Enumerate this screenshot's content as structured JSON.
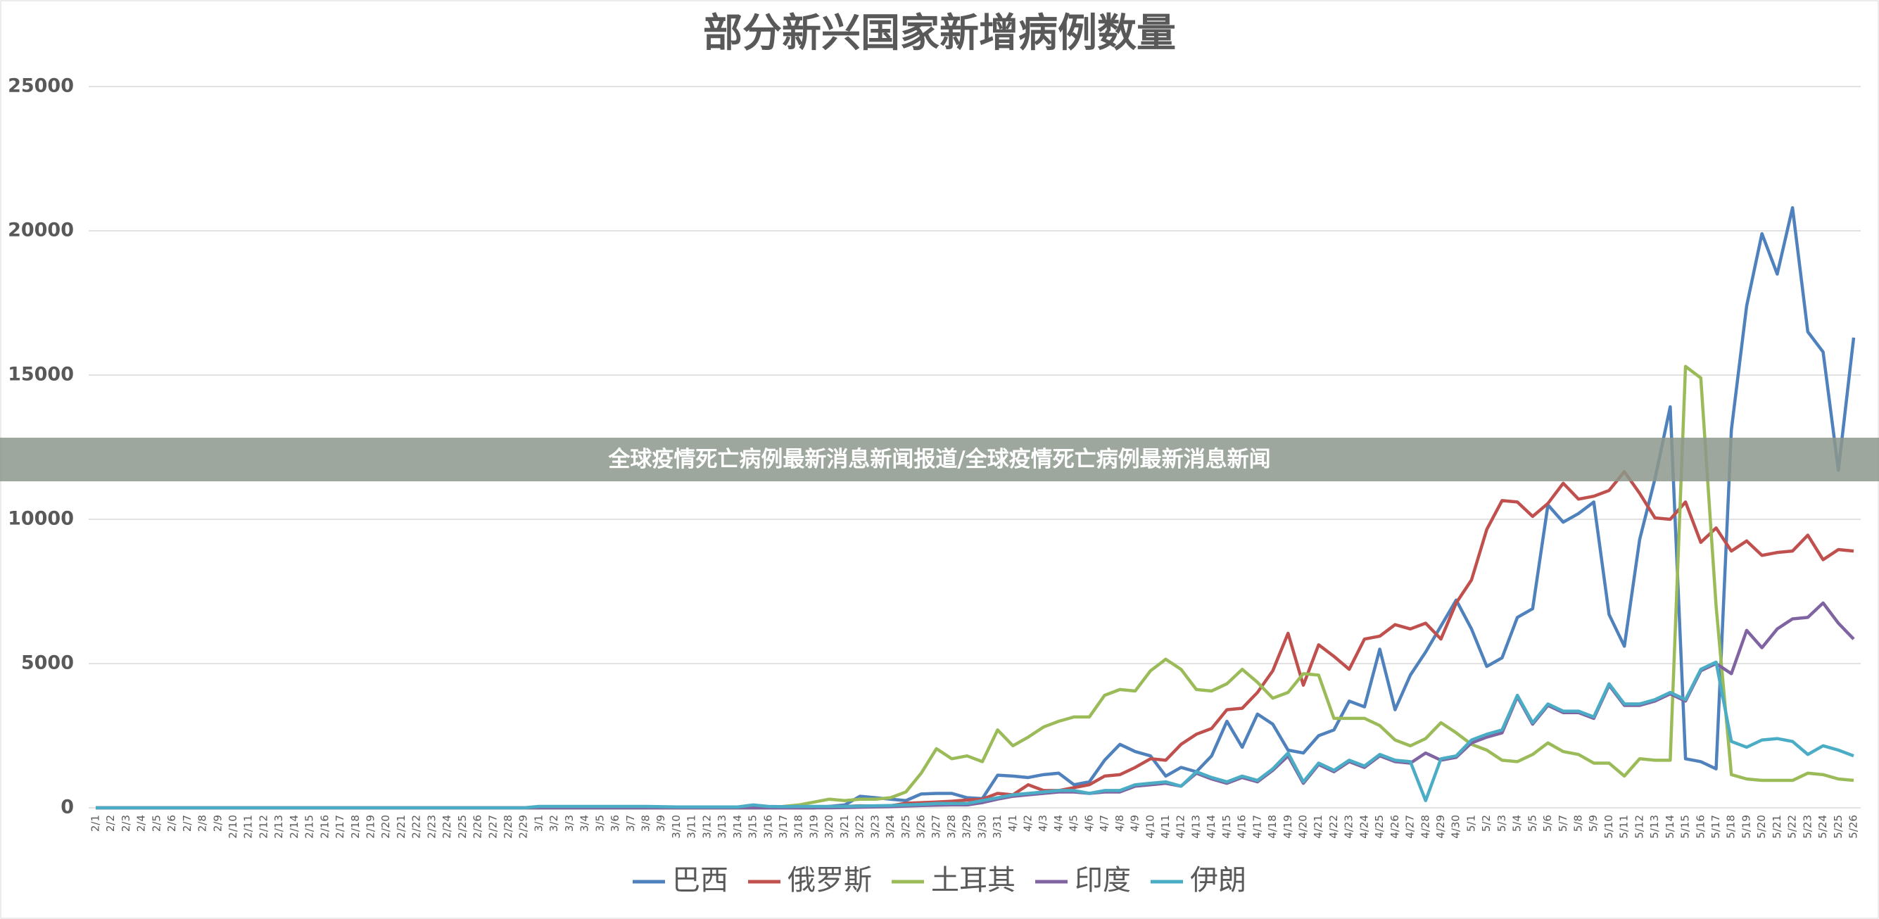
{
  "chart_data": {
    "type": "line",
    "title": "部分新兴国家新增病例数量",
    "categories": [
      "2/1",
      "2/2",
      "2/3",
      "2/4",
      "2/5",
      "2/6",
      "2/7",
      "2/8",
      "2/9",
      "2/10",
      "2/11",
      "2/12",
      "2/13",
      "2/14",
      "2/15",
      "2/16",
      "2/17",
      "2/18",
      "2/19",
      "2/20",
      "2/21",
      "2/22",
      "2/23",
      "2/24",
      "2/25",
      "2/26",
      "2/27",
      "2/28",
      "2/29",
      "3/1",
      "3/2",
      "3/3",
      "3/4",
      "3/5",
      "3/6",
      "3/7",
      "3/8",
      "3/9",
      "3/10",
      "3/11",
      "3/12",
      "3/13",
      "3/14",
      "3/15",
      "3/16",
      "3/17",
      "3/18",
      "3/19",
      "3/20",
      "3/21",
      "3/22",
      "3/23",
      "3/24",
      "3/25",
      "3/26",
      "3/27",
      "3/28",
      "3/29",
      "3/30",
      "3/31",
      "4/1",
      "4/2",
      "4/3",
      "4/4",
      "4/5",
      "4/6",
      "4/7",
      "4/8",
      "4/9",
      "4/10",
      "4/11",
      "4/12",
      "4/13",
      "4/14",
      "4/15",
      "4/16",
      "4/17",
      "4/18",
      "4/19",
      "4/20",
      "4/21",
      "4/22",
      "4/23",
      "4/24",
      "4/25",
      "4/26",
      "4/27",
      "4/28",
      "4/29",
      "4/30",
      "5/1",
      "5/2",
      "5/3",
      "5/4",
      "5/5",
      "5/6",
      "5/7",
      "5/8",
      "5/9",
      "5/10",
      "5/11",
      "5/12",
      "5/13",
      "5/14",
      "5/15",
      "5/16",
      "5/17",
      "5/18",
      "5/19",
      "5/20",
      "5/21",
      "5/22",
      "5/23",
      "5/24",
      "5/25",
      "5/26"
    ],
    "series": [
      {
        "name": "巴西",
        "color": "#4f81bd",
        "values": [
          0,
          0,
          0,
          0,
          0,
          0,
          0,
          0,
          0,
          0,
          0,
          0,
          0,
          0,
          0,
          0,
          0,
          0,
          0,
          0,
          0,
          0,
          0,
          0,
          0,
          0,
          0,
          0,
          0,
          0,
          0,
          0,
          0,
          0,
          0,
          0,
          0,
          0,
          0,
          0,
          0,
          0,
          0,
          0,
          0,
          0,
          0,
          0,
          50,
          100,
          400,
          350,
          300,
          250,
          480,
          500,
          500,
          350,
          320,
          1130,
          1100,
          1050,
          1150,
          1200,
          800,
          900,
          1650,
          2200,
          1950,
          1800,
          1100,
          1400,
          1250,
          1800,
          3000,
          2100,
          3250,
          2900,
          2000,
          1900,
          2500,
          2700,
          3700,
          3500,
          5500,
          3400,
          4600,
          5400,
          6300,
          7200,
          6200,
          4900,
          5200,
          6600,
          6900,
          10500,
          9900,
          10200,
          10600,
          6700,
          5600,
          9300,
          11400,
          13900,
          1700,
          1600,
          1350,
          13100,
          17400,
          19900,
          18500,
          20800,
          16500,
          15800,
          11700,
          16300
        ]
      },
      {
        "name": "俄罗斯",
        "color": "#c0504d",
        "values": [
          0,
          0,
          0,
          0,
          0,
          0,
          0,
          0,
          0,
          0,
          0,
          0,
          0,
          0,
          0,
          0,
          0,
          0,
          0,
          0,
          0,
          0,
          0,
          0,
          0,
          0,
          0,
          0,
          0,
          0,
          0,
          0,
          0,
          0,
          0,
          0,
          0,
          0,
          0,
          0,
          0,
          0,
          0,
          0,
          0,
          0,
          0,
          0,
          50,
          50,
          70,
          60,
          70,
          160,
          180,
          200,
          230,
          270,
          300,
          500,
          450,
          800,
          600,
          600,
          700,
          800,
          1100,
          1150,
          1400,
          1700,
          1650,
          2200,
          2550,
          2750,
          3400,
          3450,
          4000,
          4750,
          6050,
          4250,
          5650,
          5250,
          4800,
          5850,
          5950,
          6350,
          6200,
          6400,
          5850,
          7100,
          7900,
          9650,
          10650,
          10600,
          10100,
          10550,
          11250,
          10700,
          10800,
          11000,
          11650,
          10900,
          10050,
          10000,
          10600,
          9200,
          9700,
          8900,
          9250,
          8750,
          8850,
          8900,
          9450,
          8600,
          8950,
          8900
        ]
      },
      {
        "name": "土耳其",
        "color": "#9bbb59",
        "values": [
          0,
          0,
          0,
          0,
          0,
          0,
          0,
          0,
          0,
          0,
          0,
          0,
          0,
          0,
          0,
          0,
          0,
          0,
          0,
          0,
          0,
          0,
          0,
          0,
          0,
          0,
          0,
          0,
          0,
          0,
          0,
          0,
          0,
          0,
          0,
          0,
          0,
          0,
          0,
          0,
          0,
          0,
          0,
          0,
          0,
          50,
          100,
          200,
          300,
          250,
          300,
          300,
          350,
          550,
          1200,
          2050,
          1700,
          1800,
          1600,
          2700,
          2150,
          2450,
          2800,
          3000,
          3150,
          3150,
          3900,
          4100,
          4050,
          4750,
          5150,
          4800,
          4100,
          4050,
          4300,
          4800,
          4350,
          3800,
          4000,
          4650,
          4600,
          3100,
          3100,
          3100,
          2850,
          2350,
          2150,
          2400,
          2950,
          2600,
          2200,
          2000,
          1650,
          1600,
          1850,
          2250,
          1950,
          1850,
          1550,
          1550,
          1100,
          1700,
          1650,
          1650,
          15300,
          14900,
          7000,
          1150,
          1000,
          950,
          950,
          950,
          1200,
          1150,
          1000,
          950
        ]
      },
      {
        "name": "印度",
        "color": "#8064a2",
        "values": [
          0,
          0,
          0,
          0,
          0,
          0,
          0,
          0,
          0,
          0,
          0,
          0,
          0,
          0,
          0,
          0,
          0,
          0,
          0,
          0,
          0,
          0,
          0,
          0,
          0,
          0,
          0,
          0,
          0,
          0,
          0,
          0,
          0,
          0,
          0,
          0,
          0,
          0,
          0,
          0,
          0,
          0,
          0,
          0,
          0,
          0,
          0,
          0,
          0,
          10,
          20,
          30,
          40,
          60,
          80,
          90,
          100,
          100,
          180,
          300,
          400,
          450,
          500,
          550,
          550,
          500,
          550,
          550,
          750,
          800,
          850,
          750,
          1200,
          1000,
          850,
          1050,
          900,
          1300,
          1800,
          850,
          1500,
          1250,
          1600,
          1400,
          1800,
          1600,
          1550,
          1900,
          1650,
          1750,
          2250,
          2450,
          2600,
          3850,
          2900,
          3550,
          3300,
          3300,
          3100,
          4250,
          3550,
          3550,
          3700,
          3950,
          3700,
          4750,
          5000,
          4650,
          6150,
          5550,
          6200,
          6550,
          6600,
          7100,
          6400,
          5850
        ]
      },
      {
        "name": "伊朗",
        "color": "#4bacc6",
        "values": [
          0,
          0,
          0,
          0,
          0,
          0,
          0,
          0,
          0,
          0,
          0,
          0,
          0,
          0,
          0,
          0,
          0,
          0,
          0,
          0,
          0,
          0,
          0,
          0,
          0,
          0,
          0,
          0,
          0,
          50,
          50,
          50,
          50,
          50,
          50,
          50,
          50,
          40,
          30,
          30,
          30,
          30,
          30,
          100,
          50,
          40,
          50,
          50,
          50,
          50,
          60,
          70,
          80,
          100,
          120,
          150,
          150,
          150,
          250,
          350,
          450,
          500,
          550,
          600,
          600,
          500,
          600,
          600,
          800,
          850,
          900,
          750,
          1250,
          1050,
          900,
          1100,
          950,
          1350,
          1900,
          900,
          1550,
          1300,
          1650,
          1450,
          1850,
          1650,
          1600,
          250,
          1700,
          1800,
          2350,
          2550,
          2700,
          3900,
          2950,
          3600,
          3350,
          3350,
          3150,
          4300,
          3600,
          3600,
          3750,
          4000,
          3750,
          4800,
          5050,
          2300,
          2100,
          2350,
          2400,
          2300,
          1850,
          2150,
          2000,
          1800
        ]
      }
    ],
    "ylim": [
      0,
      25000
    ],
    "yticks": [
      0,
      5000,
      10000,
      15000,
      20000,
      25000
    ],
    "grid": true,
    "legend": "bottom"
  },
  "banner": "全球疫情死亡病例最新消息新闻报道/全球疫情死亡病例最新消息新闻"
}
